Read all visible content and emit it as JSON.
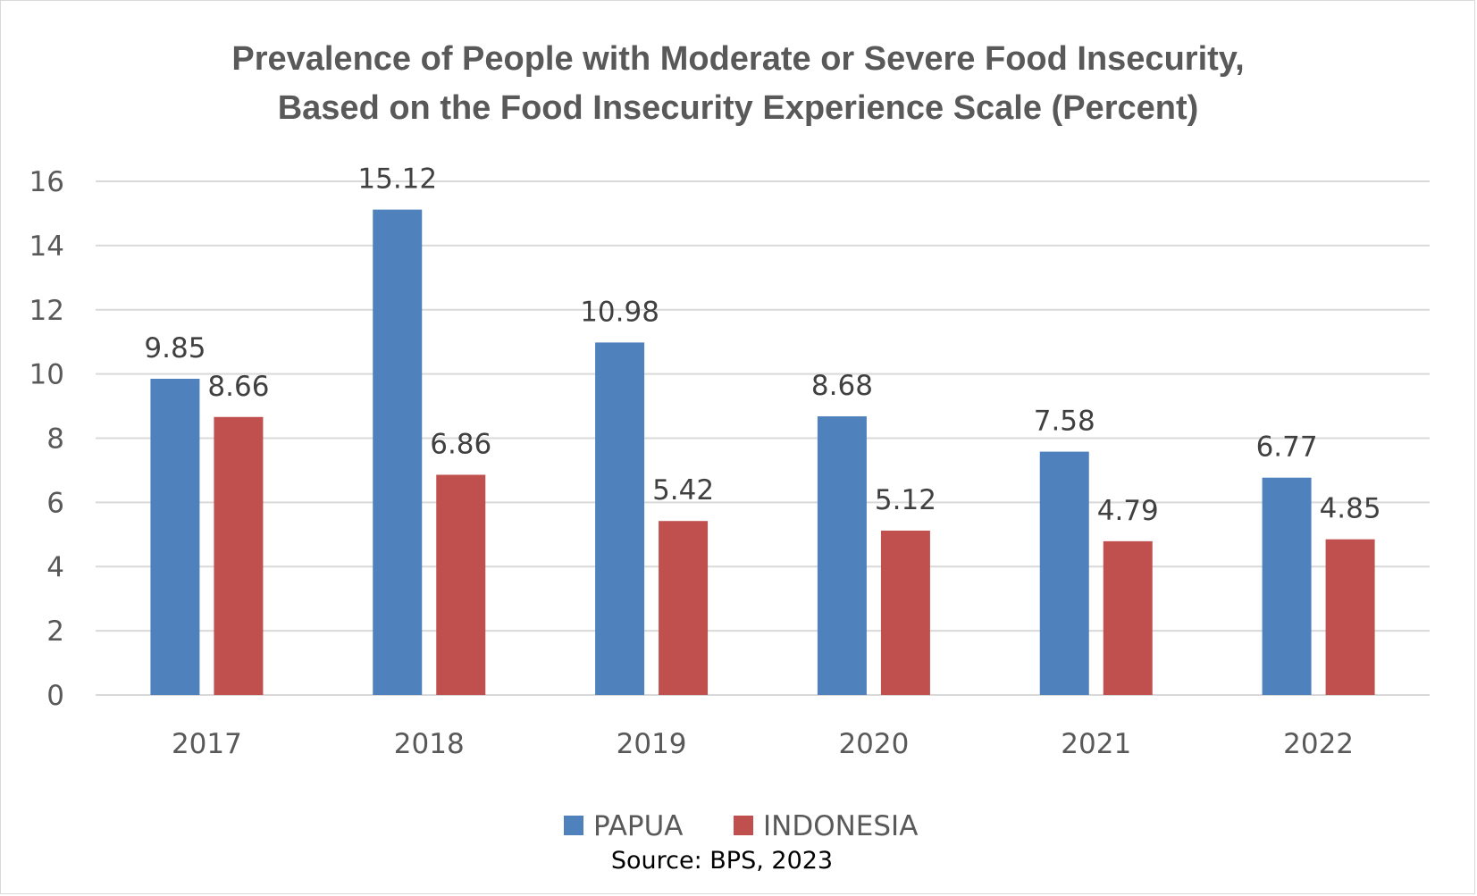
{
  "chart_data": {
    "type": "bar",
    "title_lines": [
      "Prevalence of People with Moderate or Severe Food Insecurity,",
      "Based on the Food Insecurity Experience Scale (Percent)"
    ],
    "categories": [
      "2017",
      "2018",
      "2019",
      "2020",
      "2021",
      "2022"
    ],
    "series": [
      {
        "name": "PAPUA",
        "color": "#4f81bd",
        "values": [
          9.85,
          15.12,
          10.98,
          8.68,
          7.58,
          6.77
        ]
      },
      {
        "name": "INDONESIA",
        "color": "#c0504d",
        "values": [
          8.66,
          6.86,
          5.42,
          5.12,
          4.79,
          4.85
        ]
      }
    ],
    "ylim": [
      0,
      16
    ],
    "yticks": [
      "0",
      "2",
      "4",
      "6",
      "8",
      "10",
      "12",
      "14",
      "16"
    ],
    "grid": true,
    "legend_position": "bottom",
    "data_labels": true,
    "source": "Source: BPS, 2023"
  }
}
